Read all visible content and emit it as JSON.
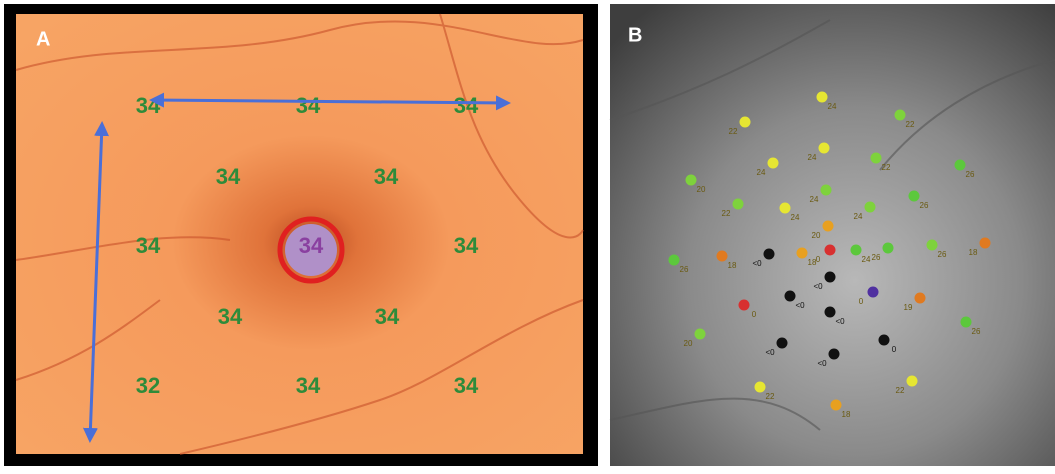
{
  "panel_a": {
    "label": "A",
    "values": [
      "34",
      "34",
      "34",
      "34",
      "34",
      "34",
      "34",
      "34",
      "34",
      "34",
      "32",
      "34",
      "34"
    ],
    "value_color": "#2e8b3a",
    "arrow_color": "#4a6fd8"
  },
  "panel_b": {
    "label": "B",
    "points": [
      {
        "label": "24",
        "color": "#e6e632"
      },
      {
        "label": "22",
        "color": "#e6e632"
      },
      {
        "label": "22",
        "color": "#7ed23c"
      },
      {
        "label": "24",
        "color": "#e6e632"
      },
      {
        "label": "22",
        "color": "#7ed23c"
      },
      {
        "label": "24",
        "color": "#e6e632"
      },
      {
        "label": "20",
        "color": "#7ed23c"
      },
      {
        "label": "24",
        "color": "#7ed23c"
      },
      {
        "label": "26",
        "color": "#5cc83c"
      },
      {
        "label": "22",
        "color": "#7ed23c"
      },
      {
        "label": "24",
        "color": "#e6e632"
      },
      {
        "label": "24",
        "color": "#7ed23c"
      },
      {
        "label": "26",
        "color": "#5cc83c"
      },
      {
        "label": "20",
        "color": "#e8a020"
      },
      {
        "label": "18",
        "color": "#e07a20"
      },
      {
        "label": "<0",
        "color": "#111111"
      },
      {
        "label": "18",
        "color": "#e8a020"
      },
      {
        "label": "0",
        "color": "#d83030"
      },
      {
        "label": "24",
        "color": "#5cc83c"
      },
      {
        "label": "26",
        "color": "#5cc83c"
      },
      {
        "label": "26",
        "color": "#7ed23c"
      },
      {
        "label": "18",
        "color": "#e07a20"
      },
      {
        "label": "26",
        "color": "#5cc83c"
      },
      {
        "label": "<0",
        "color": "#111111"
      },
      {
        "label": "<0",
        "color": "#111111"
      },
      {
        "label": "0",
        "color": "#5030a0"
      },
      {
        "label": "0",
        "color": "#d83030"
      },
      {
        "label": "19",
        "color": "#e07a20"
      },
      {
        "label": "<0",
        "color": "#111111"
      },
      {
        "label": "20",
        "color": "#7ed23c"
      },
      {
        "label": "26",
        "color": "#5cc83c"
      },
      {
        "label": "<0",
        "color": "#111111"
      },
      {
        "label": "0",
        "color": "#111111"
      },
      {
        "label": "<0",
        "color": "#111111"
      },
      {
        "label": "22",
        "color": "#e6e632"
      },
      {
        "label": "22",
        "color": "#e6e632"
      },
      {
        "label": "18",
        "color": "#e8a020"
      }
    ]
  }
}
